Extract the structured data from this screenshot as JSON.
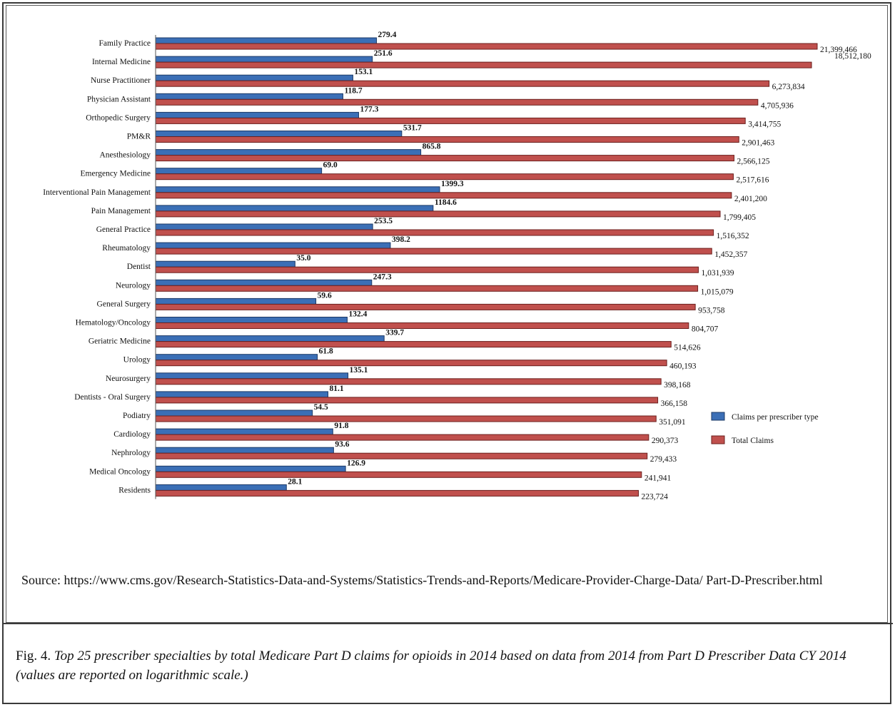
{
  "chart_data": {
    "type": "bar",
    "orientation": "horizontal",
    "scale": "logarithmic",
    "grid": false,
    "legend_position": "right",
    "categories": [
      "Family Practice",
      "Internal Medicine",
      "Nurse Practitioner",
      "Physician Assistant",
      "Orthopedic Surgery",
      "PM&R",
      "Anesthesiology",
      "Emergency Medicine",
      "Interventional Pain Management",
      "Pain Management",
      "General Practice",
      "Rheumatology",
      "Dentist",
      "Neurology",
      "General Surgery",
      "Hematology/Oncology",
      "Geriatric Medicine",
      "Urology",
      "Neurosurgery",
      "Dentists - Oral Surgery",
      "Podiatry",
      "Cardiology",
      "Nephrology",
      "Medical Oncology",
      "Residents"
    ],
    "series": [
      {
        "name": "Claims per prescriber type",
        "color": "#3b6fb6",
        "values": [
          279.4,
          251.6,
          153.1,
          118.7,
          177.3,
          531.7,
          865.8,
          69.0,
          1399.3,
          1184.6,
          253.5,
          398.2,
          35.0,
          247.3,
          59.6,
          132.4,
          339.7,
          61.8,
          135.1,
          81.1,
          54.5,
          91.8,
          93.6,
          126.9,
          28.1
        ],
        "labels": [
          "279.4",
          "251.6",
          "153.1",
          "118.7",
          "177.3",
          "531.7",
          "865.8",
          "69.0",
          "1399.3",
          "1184.6",
          "253.5",
          "398.2",
          "35.0",
          "247.3",
          "59.6",
          "132.4",
          "339.7",
          "61.8",
          "135.1",
          "81.1",
          "54.5",
          "91.8",
          "93.6",
          "126.9",
          "28.1"
        ]
      },
      {
        "name": "Total Claims",
        "color": "#c0504d",
        "values": [
          21399466,
          18512180,
          6273834,
          4705936,
          3414755,
          2901463,
          2566125,
          2517616,
          2401200,
          1799405,
          1516352,
          1452357,
          1031939,
          1015079,
          953758,
          804707,
          514626,
          460193,
          398168,
          366158,
          351091,
          290373,
          279433,
          241941,
          223724
        ],
        "labels": [
          "21,399,466",
          "18,512,180",
          "6,273,834",
          "4,705,936",
          "3,414,755",
          "2,901,463",
          "2,566,125",
          "2,517,616",
          "2,401,200",
          "1,799,405",
          "1,516,352",
          "1,452,357",
          "1,031,939",
          "1,015,079",
          "953,758",
          "804,707",
          "514,626",
          "460,193",
          "398,168",
          "366,158",
          "351,091",
          "290,373",
          "279,433",
          "241,941",
          "223,724"
        ]
      }
    ]
  },
  "source_text": "Source: https://www.cms.gov/Research-Statistics-Data-and-Systems/Statistics-Trends-and-Reports/Medicare-Provider-Charge-Data/ Part-D-Prescriber.html",
  "caption": {
    "label": "Fig. 4.",
    "text": "Top 25 prescriber specialties by total Medicare Part D claims for opioids in 2014 based on data from 2014 from Part D Prescriber Data CY 2014 (values are reported on logarithmic scale.)"
  }
}
